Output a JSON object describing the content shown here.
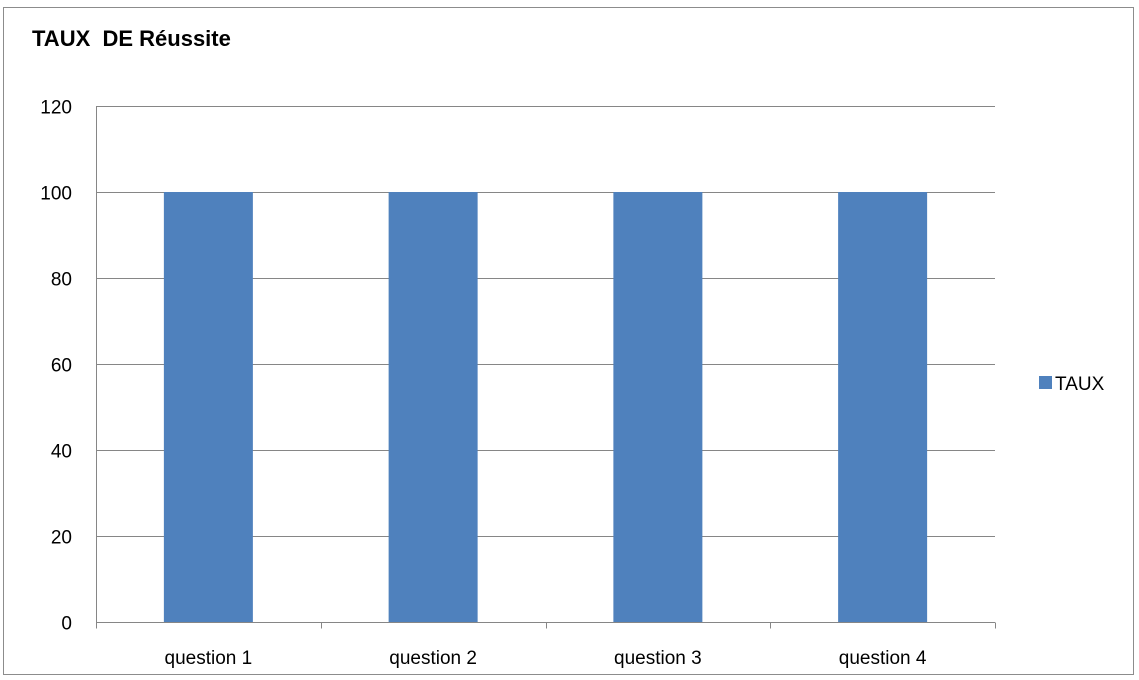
{
  "chart_data": {
    "type": "bar",
    "title": "TAUX  DE Réussite",
    "categories": [
      "question 1",
      "question 2",
      "question 3",
      "question 4"
    ],
    "series": [
      {
        "name": "TAUX",
        "values": [
          100,
          100,
          100,
          100
        ],
        "color": "#4f81bd"
      }
    ],
    "ylim": [
      0,
      120
    ],
    "yticks": [
      0,
      20,
      40,
      60,
      80,
      100,
      120
    ],
    "xlabel": "",
    "ylabel": "",
    "grid": true,
    "legend_position": "right"
  }
}
